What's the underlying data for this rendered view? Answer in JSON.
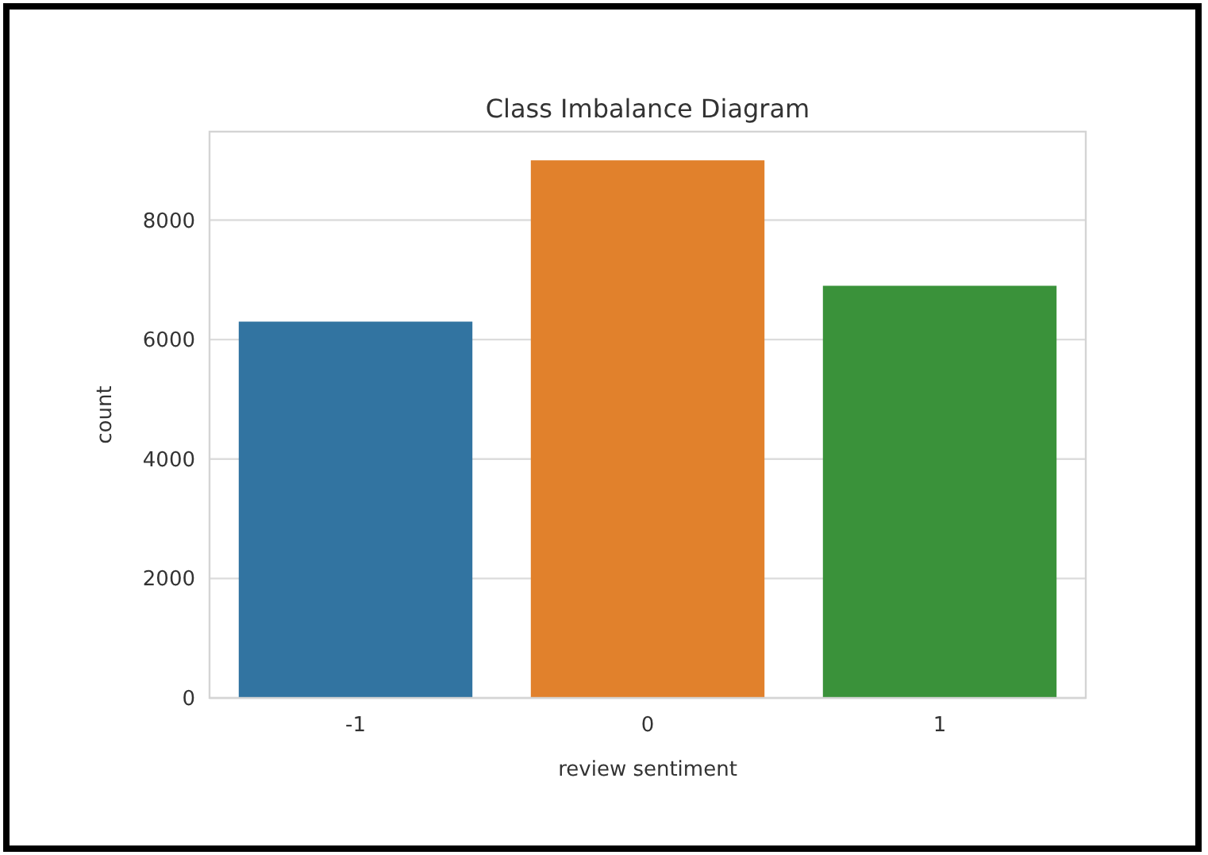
{
  "chart_data": {
    "type": "bar",
    "title": "Class Imbalance Diagram",
    "xlabel": "review sentiment",
    "ylabel": "count",
    "categories": [
      "-1",
      "0",
      "1"
    ],
    "values": [
      6300,
      9000,
      6900
    ],
    "colors": [
      "#3274a1",
      "#e1812c",
      "#3a923a"
    ],
    "ylim": [
      0,
      9480
    ],
    "yticks": [
      0,
      2000,
      4000,
      6000,
      8000
    ],
    "grid": "y"
  }
}
